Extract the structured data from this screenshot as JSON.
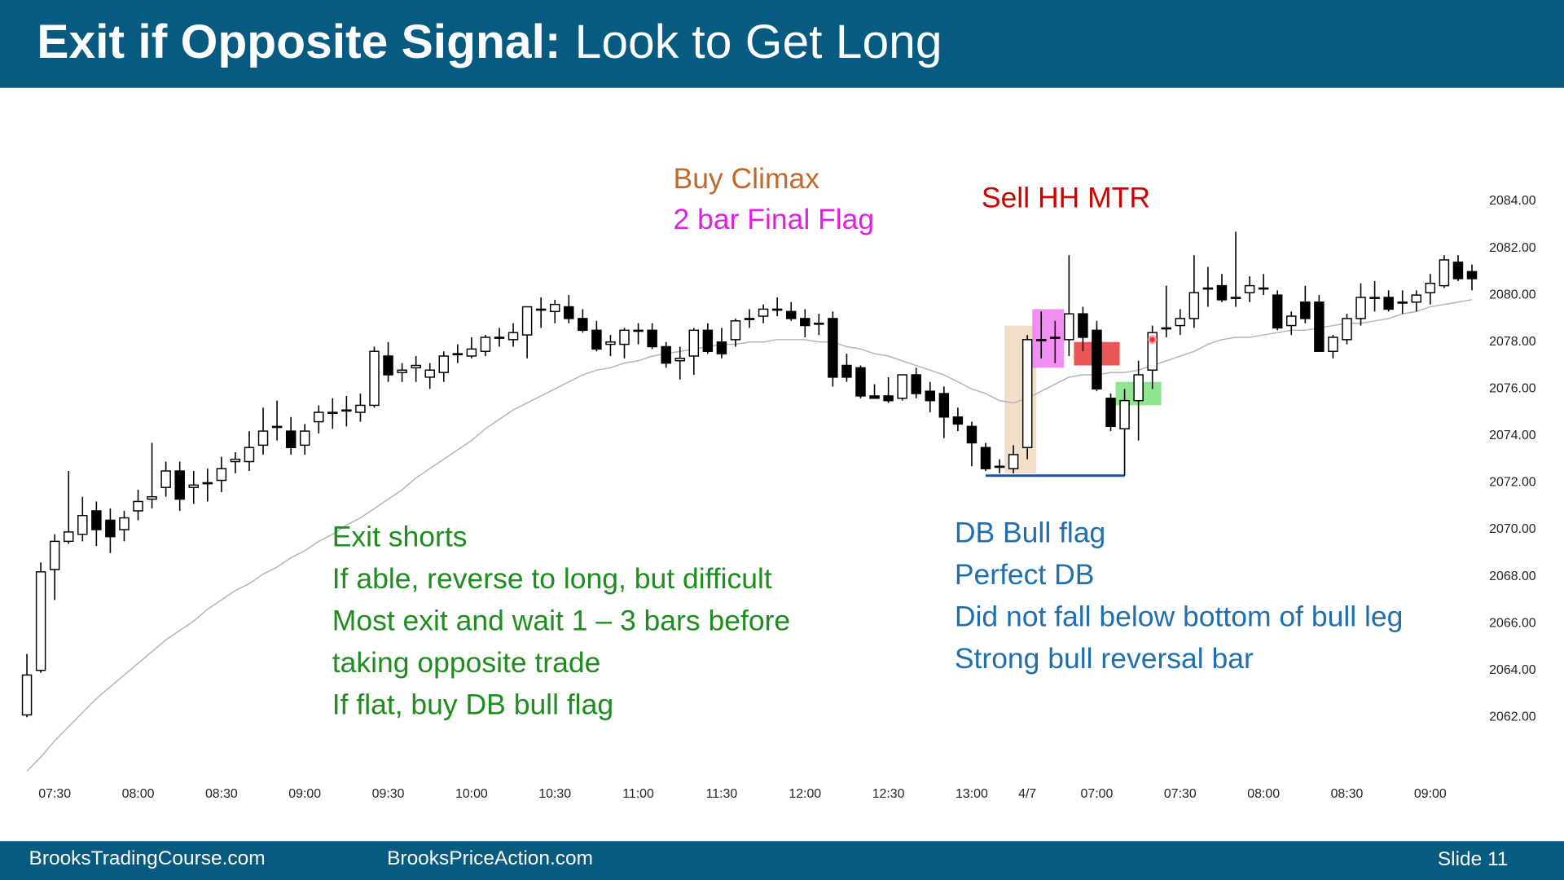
{
  "header": {
    "title_bold": "Exit if Opposite Signal:",
    "title_rest": "Look to Get Long"
  },
  "footer": {
    "left": "BrooksTradingCourse.com",
    "center": "BrooksPriceAction.com",
    "slide": "Slide 11"
  },
  "chart_data": {
    "type": "candlestick",
    "categories": [
      null,
      null,
      "07:30",
      null,
      null,
      null,
      null,
      null,
      "08:00",
      null,
      null,
      null,
      null,
      null,
      "08:30",
      null,
      null,
      null,
      null,
      null,
      "09:00",
      null,
      null,
      null,
      null,
      null,
      "09:30",
      null,
      null,
      null,
      null,
      null,
      "10:00",
      null,
      null,
      null,
      null,
      null,
      "10:30",
      null,
      null,
      null,
      null,
      null,
      "11:00",
      null,
      null,
      null,
      null,
      null,
      "11:30",
      null,
      null,
      null,
      null,
      null,
      "12:00",
      null,
      null,
      null,
      null,
      null,
      "12:30",
      null,
      null,
      null,
      null,
      null,
      "13:00",
      null,
      null,
      null,
      "4/7",
      null,
      null,
      null,
      null,
      "07:00",
      null,
      null,
      null,
      null,
      null,
      "07:30",
      null,
      null,
      null,
      null,
      null,
      "08:00",
      null,
      null,
      null,
      null,
      null,
      "08:30",
      null,
      null,
      null,
      null,
      null,
      "09:00",
      null,
      null,
      null
    ],
    "open": [
      2062.1,
      2064.0,
      2068.3,
      2069.5,
      2069.8,
      2070.8,
      2070.4,
      2070.0,
      2070.8,
      2071.3,
      2071.8,
      2072.5,
      2071.8,
      2072.0,
      2072.1,
      2072.9,
      2072.9,
      2073.6,
      2074.4,
      2074.2,
      2073.6,
      2074.6,
      2075.0,
      2075.1,
      2075.0,
      2075.3,
      2077.4,
      2076.7,
      2076.9,
      2076.5,
      2076.7,
      2077.5,
      2077.4,
      2077.6,
      2078.2,
      2078.1,
      2078.3,
      2079.4,
      2079.3,
      2079.5,
      2079.0,
      2078.5,
      2077.9,
      2077.9,
      2078.5,
      2078.5,
      2077.8,
      2077.2,
      2077.4,
      2078.5,
      2078.0,
      2078.1,
      2079.0,
      2079.1,
      2079.4,
      2079.3,
      2079.0,
      2078.8,
      2079.0,
      2077.0,
      2076.9,
      2075.7,
      2075.7,
      2075.6,
      2076.6,
      2075.9,
      2075.8,
      2074.8,
      2074.4,
      2073.5,
      2072.7,
      2072.6,
      2073.5,
      2078.1,
      2078.2,
      2078.1,
      2079.2,
      2078.5,
      2075.6,
      2074.3,
      2075.5,
      2076.8,
      2078.6,
      2078.7,
      2079.0,
      2080.3,
      2080.4,
      2079.9,
      2080.1,
      2080.3,
      2080.0,
      2078.7,
      2079.7,
      2079.7,
      2077.6,
      2078.1,
      2079.0,
      2079.9,
      2079.9,
      2079.7,
      2079.7,
      2080.1,
      2080.4,
      2081.4,
      2081.0
    ],
    "high": [
      2064.7,
      2068.6,
      2069.8,
      2072.5,
      2071.4,
      2071.2,
      2070.9,
      2070.8,
      2071.7,
      2073.7,
      2072.9,
      2072.9,
      2072.5,
      2072.6,
      2073.1,
      2073.3,
      2074.2,
      2075.2,
      2075.5,
      2074.8,
      2074.5,
      2075.3,
      2075.6,
      2075.7,
      2075.8,
      2077.8,
      2078.0,
      2077.1,
      2077.4,
      2077.1,
      2077.6,
      2077.9,
      2078.2,
      2078.3,
      2078.6,
      2078.8,
      2079.5,
      2079.9,
      2079.8,
      2080.0,
      2079.4,
      2078.9,
      2078.3,
      2078.6,
      2078.8,
      2078.8,
      2078.0,
      2077.8,
      2078.6,
      2078.8,
      2078.6,
      2079.0,
      2079.4,
      2079.6,
      2079.9,
      2079.7,
      2079.4,
      2079.2,
      2079.3,
      2077.5,
      2077.0,
      2076.2,
      2076.5,
      2076.6,
      2076.9,
      2076.3,
      2076.1,
      2075.2,
      2074.6,
      2073.7,
      2073.0,
      2073.6,
      2078.3,
      2079.3,
      2078.9,
      2081.7,
      2079.5,
      2078.9,
      2075.8,
      2076.0,
      2077.2,
      2078.7,
      2080.4,
      2079.4,
      2081.7,
      2081.2,
      2080.9,
      2082.7,
      2080.8,
      2080.9,
      2080.2,
      2079.3,
      2080.4,
      2080.0,
      2078.3,
      2079.2,
      2080.5,
      2080.6,
      2080.2,
      2080.2,
      2080.2,
      2080.9,
      2081.7,
      2081.7,
      2081.3
    ],
    "low": [
      2062.0,
      2063.9,
      2067.0,
      2069.4,
      2069.5,
      2069.3,
      2069.0,
      2069.5,
      2070.4,
      2070.9,
      2071.4,
      2070.8,
      2071.1,
      2071.2,
      2071.6,
      2072.4,
      2072.5,
      2073.2,
      2073.8,
      2073.2,
      2073.2,
      2074.1,
      2074.3,
      2074.4,
      2074.6,
      2075.2,
      2076.3,
      2076.3,
      2076.3,
      2076.0,
      2076.3,
      2077.1,
      2077.3,
      2077.4,
      2077.8,
      2077.8,
      2077.3,
      2078.6,
      2078.8,
      2078.8,
      2078.4,
      2077.6,
      2077.4,
      2077.3,
      2077.9,
      2077.7,
      2076.9,
      2076.4,
      2076.6,
      2077.5,
      2077.3,
      2077.8,
      2078.6,
      2078.8,
      2079.1,
      2078.9,
      2078.2,
      2078.3,
      2076.1,
      2076.3,
      2075.6,
      2075.6,
      2075.4,
      2075.5,
      2075.6,
      2075.0,
      2073.9,
      2074.2,
      2072.7,
      2072.5,
      2072.4,
      2072.4,
      2073.0,
      2077.3,
      2077.1,
      2077.4,
      2077.6,
      2075.9,
      2074.2,
      2072.3,
      2073.8,
      2076.0,
      2078.2,
      2078.3,
      2078.6,
      2079.5,
      2079.7,
      2079.5,
      2079.7,
      2080.0,
      2078.5,
      2078.3,
      2078.8,
      2077.6,
      2077.3,
      2077.9,
      2078.7,
      2079.3,
      2079.3,
      2079.2,
      2079.3,
      2079.6,
      2080.3,
      2080.6,
      2080.2
    ],
    "close": [
      2063.8,
      2068.2,
      2069.5,
      2069.9,
      2070.6,
      2070.0,
      2069.7,
      2070.5,
      2071.2,
      2071.4,
      2072.5,
      2071.3,
      2071.9,
      2072.0,
      2072.6,
      2073.0,
      2073.5,
      2074.2,
      2074.4,
      2073.5,
      2074.2,
      2075.0,
      2075.0,
      2075.1,
      2075.3,
      2077.6,
      2076.6,
      2076.8,
      2077.0,
      2076.8,
      2077.4,
      2077.5,
      2077.7,
      2078.2,
      2078.2,
      2078.4,
      2079.5,
      2079.4,
      2079.6,
      2079.0,
      2078.5,
      2077.7,
      2078.0,
      2078.5,
      2078.5,
      2077.8,
      2077.1,
      2077.3,
      2078.5,
      2077.6,
      2077.5,
      2078.9,
      2079.0,
      2079.4,
      2079.4,
      2079.0,
      2078.7,
      2078.8,
      2076.5,
      2076.5,
      2075.7,
      2075.6,
      2075.5,
      2076.6,
      2075.8,
      2075.5,
      2074.8,
      2074.5,
      2073.7,
      2072.6,
      2072.7,
      2073.2,
      2078.1,
      2078.1,
      2078.2,
      2079.2,
      2078.2,
      2076.0,
      2074.4,
      2075.5,
      2076.6,
      2078.4,
      2078.6,
      2079.0,
      2080.1,
      2080.3,
      2079.8,
      2079.9,
      2080.4,
      2080.3,
      2078.6,
      2079.1,
      2079.0,
      2077.6,
      2078.2,
      2079.0,
      2079.9,
      2079.9,
      2079.4,
      2079.7,
      2080.0,
      2080.5,
      2081.5,
      2080.7,
      2080.7
    ],
    "bull_color": "#ffffff",
    "bear_color": "#000000",
    "wick_color": "#000000",
    "ma": {
      "color": "#b4b4b4",
      "values": [
        2059.7,
        2060.3,
        2061.0,
        2061.6,
        2062.2,
        2062.8,
        2063.3,
        2063.8,
        2064.3,
        2064.8,
        2065.3,
        2065.7,
        2066.1,
        2066.6,
        2067.0,
        2067.4,
        2067.7,
        2068.1,
        2068.4,
        2068.8,
        2069.1,
        2069.5,
        2069.8,
        2070.2,
        2070.5,
        2070.9,
        2071.3,
        2071.7,
        2072.2,
        2072.6,
        2073.0,
        2073.4,
        2073.8,
        2074.3,
        2074.7,
        2075.1,
        2075.4,
        2075.7,
        2076.0,
        2076.3,
        2076.6,
        2076.8,
        2076.9,
        2077.1,
        2077.2,
        2077.4,
        2077.5,
        2077.6,
        2077.7,
        2077.8,
        2077.9,
        2077.9,
        2078.0,
        2078.0,
        2078.1,
        2078.1,
        2078.1,
        2078.0,
        2078.0,
        2077.8,
        2077.7,
        2077.5,
        2077.4,
        2077.2,
        2077.0,
        2076.8,
        2076.6,
        2076.3,
        2076.0,
        2075.8,
        2075.5,
        2075.4,
        2075.6,
        2075.9,
        2076.2,
        2076.5,
        2076.6,
        2076.6,
        2076.7,
        2076.7,
        2076.8,
        2077.0,
        2077.2,
        2077.4,
        2077.6,
        2077.9,
        2078.1,
        2078.2,
        2078.2,
        2078.3,
        2078.4,
        2078.5,
        2078.5,
        2078.6,
        2078.7,
        2078.8,
        2078.8,
        2078.9,
        2079.0,
        2079.2,
        2079.3,
        2079.5,
        2079.6,
        2079.7,
        2079.8
      ]
    },
    "ylim": [
      2059.4,
      2086.2
    ],
    "yticks": [
      {
        "value": 2062,
        "label": "2062.00"
      },
      {
        "value": 2064,
        "label": "2064.00"
      },
      {
        "value": 2066,
        "label": "2066.00"
      },
      {
        "value": 2068,
        "label": "2068.00"
      },
      {
        "value": 2070,
        "label": "2070.00"
      },
      {
        "value": 2072,
        "label": "2072.00"
      },
      {
        "value": 2074,
        "label": "2074.00"
      },
      {
        "value": 2076,
        "label": "2076.00"
      },
      {
        "value": 2078,
        "label": "2078.00"
      },
      {
        "value": 2080,
        "label": "2080.00"
      },
      {
        "value": 2082,
        "label": "2082.00"
      },
      {
        "value": 2084,
        "label": "2084.00"
      }
    ],
    "zones": [
      {
        "start": 71,
        "end": 72,
        "low": 2072.4,
        "high": 2078.7,
        "color": "#f0d8c0"
      },
      {
        "start": 73,
        "end": 74,
        "low": 2076.9,
        "high": 2079.4,
        "color": "#f07cf0"
      },
      {
        "start": 76,
        "end": 78,
        "low": 2077.0,
        "high": 2078.0,
        "color": "#e83a3a"
      },
      {
        "start": 79,
        "end": 81,
        "low": 2075.3,
        "high": 2076.3,
        "color": "#7ee07e"
      }
    ],
    "bottom_line": {
      "start": 69,
      "end": 79,
      "value": 2072.3,
      "color": "#1f4f9f"
    },
    "marker": {
      "index": 81,
      "value": 2078.1,
      "color": "#e83030"
    },
    "annotations": [
      {
        "lines": [
          "Buy Climax"
        ],
        "color": "#c0692f"
      },
      {
        "lines": [
          "2 bar Final Flag"
        ],
        "color": "#e020e0"
      },
      {
        "lines": [
          "Sell HH MTR"
        ],
        "color": "#cc0000"
      },
      {
        "lines": [
          "Exit shorts",
          "If able, reverse to long, but difficult",
          "Most exit and wait 1 – 3 bars before",
          "taking opposite trade",
          "If flat, buy DB bull flag"
        ],
        "color": "#1e8c1e"
      },
      {
        "lines": [
          "DB Bull flag",
          "Perfect DB",
          "Did not fall below bottom of bull leg",
          "Strong bull reversal bar"
        ],
        "color": "#1f6fae"
      }
    ]
  }
}
